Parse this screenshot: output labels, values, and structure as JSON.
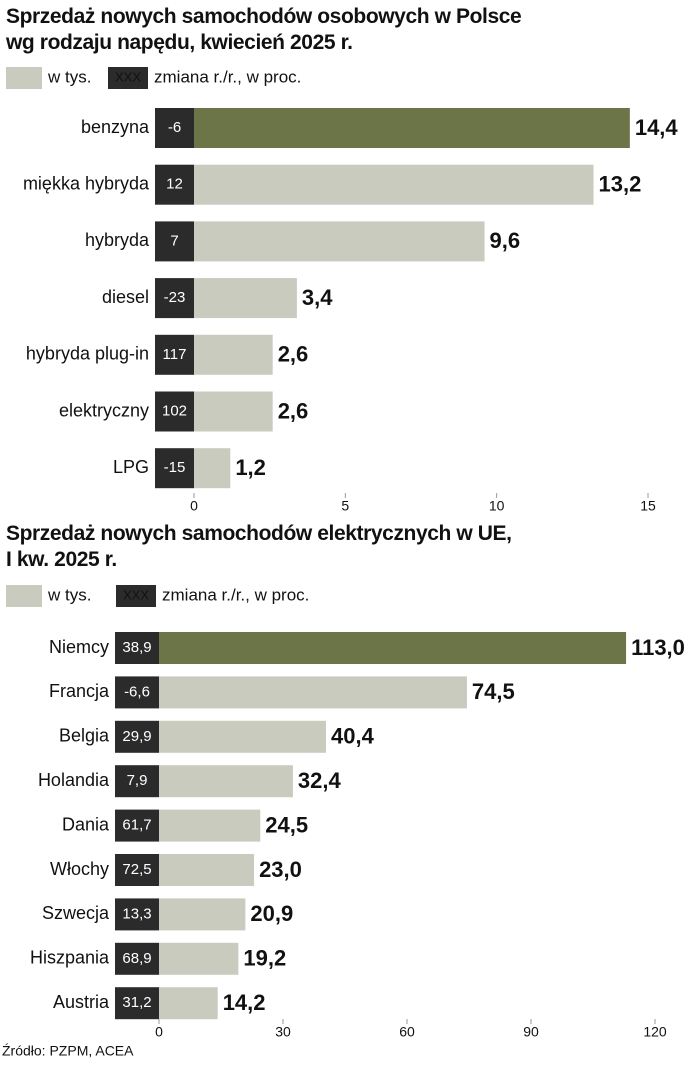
{
  "chart_data": [
    {
      "type": "bar",
      "orientation": "horizontal",
      "title": "Sprzedaż nowych samochodów osobowych w Polsce\nwg rodzaju napędu, kwiecień 2025 r.",
      "legend": {
        "value": "w tys.",
        "change_box": "XXX",
        "change": "zmiana r./r., w proc."
      },
      "categories": [
        "benzyna",
        "miękka hybryda",
        "hybryda",
        "diesel",
        "hybryda plug-in",
        "elektryczny",
        "LPG"
      ],
      "values": [
        14.4,
        13.2,
        9.6,
        3.4,
        2.6,
        2.6,
        1.2
      ],
      "value_labels": [
        "14,4",
        "13,2",
        "9,6",
        "3,4",
        "2,6",
        "2,6",
        "1,2"
      ],
      "changes": [
        -6,
        12,
        7,
        -23,
        117,
        102,
        -15
      ],
      "colors": [
        "#6b7548",
        "#c9cbbe",
        "#c9cbbe",
        "#c9cbbe",
        "#c9cbbe",
        "#c9cbbe",
        "#c9cbbe"
      ],
      "xlim": [
        0,
        15
      ],
      "xticks": [
        0,
        5,
        10,
        15
      ]
    },
    {
      "type": "bar",
      "orientation": "horizontal",
      "title": "Sprzedaż nowych samochodów elektrycznych w UE,\nI kw. 2025 r.",
      "legend": {
        "value": "w tys.",
        "change_box": "XXX",
        "change": "zmiana r./r., w proc."
      },
      "categories": [
        "Niemcy",
        "Francja",
        "Belgia",
        "Holandia",
        "Dania",
        "Włochy",
        "Szwecja",
        "Hiszpania",
        "Austria"
      ],
      "values": [
        113.0,
        74.5,
        40.4,
        32.4,
        24.5,
        23.0,
        20.9,
        19.2,
        14.2
      ],
      "value_labels": [
        "113,0",
        "74,5",
        "40,4",
        "32,4",
        "24,5",
        "23,0",
        "20,9",
        "19,2",
        "14,2"
      ],
      "changes": [
        38.9,
        -6.6,
        29.9,
        7.9,
        61.7,
        72.5,
        13.3,
        68.9,
        31.2
      ],
      "change_labels": [
        "38,9",
        "-6,6",
        "29,9",
        "7,9",
        "61,7",
        "72,5",
        "13,3",
        "68,9",
        "31,2"
      ],
      "colors": [
        "#6b7548",
        "#c9cbbe",
        "#c9cbbe",
        "#c9cbbe",
        "#c9cbbe",
        "#c9cbbe",
        "#c9cbbe",
        "#c9cbbe",
        "#c9cbbe"
      ],
      "xlim": [
        0,
        120
      ],
      "xticks": [
        0,
        30,
        60,
        90,
        120
      ]
    }
  ],
  "source": "Źródło: PZPM, ACEA"
}
